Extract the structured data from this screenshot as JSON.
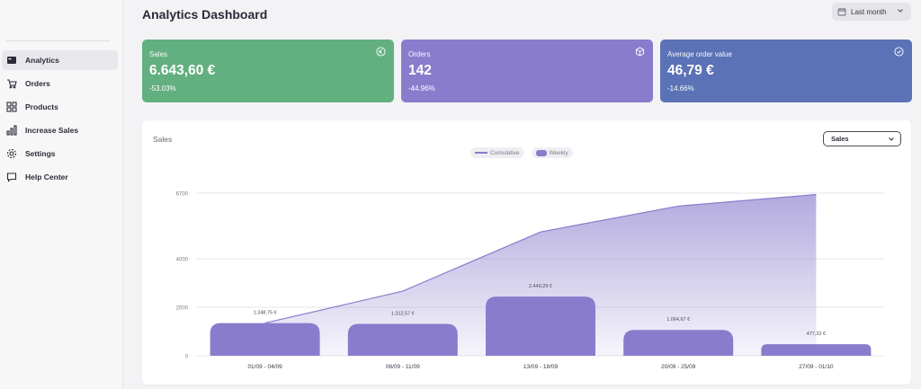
{
  "header": {
    "title": "Analytics Dashboard",
    "date_range": "Last month"
  },
  "sidebar": {
    "items": [
      {
        "label": "Analytics",
        "icon": "analytics-icon",
        "active": true
      },
      {
        "label": "Orders",
        "icon": "cart-icon",
        "active": false
      },
      {
        "label": "Products",
        "icon": "grid-icon",
        "active": false
      },
      {
        "label": "Increase Sales",
        "icon": "bar-chart-icon",
        "active": false
      },
      {
        "label": "Settings",
        "icon": "gear-icon",
        "active": false
      },
      {
        "label": "Help Center",
        "icon": "chat-icon",
        "active": false
      }
    ]
  },
  "cards": [
    {
      "label": "Sales",
      "value": "6.643,60 €",
      "change": "-53.03%",
      "color": "#62b07f",
      "icon": "euro-icon"
    },
    {
      "label": "Orders",
      "value": "142",
      "change": "-44.96%",
      "color": "#8a7ccc",
      "icon": "box-icon"
    },
    {
      "label": "Average order value",
      "value": "46,79 €",
      "change": "-14.66%",
      "color": "#5b72b6",
      "icon": "check-circle-icon"
    }
  ],
  "chart_panel": {
    "title": "Sales",
    "metric_select": "Sales"
  },
  "chart_data": {
    "type": "bar",
    "categories": [
      "01/09 - 04/09",
      "06/09 - 11/09",
      "13/09 - 18/09",
      "20/09 - 25/09",
      "27/09 - 01/10"
    ],
    "series": [
      {
        "name": "Weekly",
        "type": "bar",
        "values": [
          1348.75,
          1312.57,
          2440.29,
          1064.67,
          477.32
        ],
        "labels": [
          "1.348,75 €",
          "1.312,57 €",
          "2.440,29 €",
          "1.064,67 €",
          "477,32 €"
        ],
        "color": "#8a7ccc"
      },
      {
        "name": "Cumulative",
        "type": "area",
        "values": [
          1348.75,
          2661.32,
          5101.61,
          6166.28,
          6643.6
        ],
        "color": "#8a7ccc"
      }
    ],
    "y_ticks": [
      "0",
      "2000",
      "4000",
      "6700"
    ],
    "ylim": [
      0,
      6700
    ],
    "grid": true,
    "legend_position": "top-center"
  }
}
